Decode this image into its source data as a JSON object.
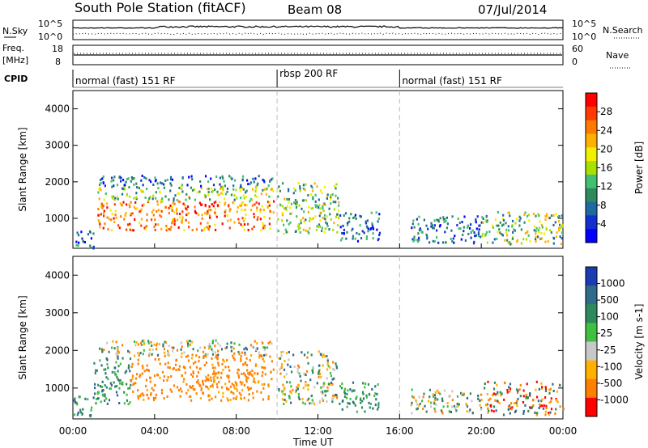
{
  "header": {
    "station": "South Pole Station (fitACF)",
    "beam": "Beam 08",
    "date": "07/Jul/2014"
  },
  "top_panels": {
    "nsky": {
      "label": "N.Sky",
      "ticks": [
        "10^5",
        "10^0"
      ],
      "right_label": "N.Search",
      "right_ticks": [
        "10^5",
        "10^0"
      ]
    },
    "freq": {
      "label_line1": "Freq.",
      "label_line2": "[MHz]",
      "ticks": [
        "18",
        "8"
      ],
      "right_label": "Nave",
      "right_ticks": [
        "60",
        "0"
      ]
    },
    "cpid": {
      "label": "CPID",
      "segments": [
        {
          "name": "normal (fast) 151 RF",
          "start_h": 0,
          "end_h": 10
        },
        {
          "name": "rbsp 200 RF",
          "start_h": 10,
          "end_h": 16
        },
        {
          "name": "normal (fast) 151 RF",
          "start_h": 16,
          "end_h": 24
        }
      ]
    }
  },
  "power_colorbar": {
    "label": "Power [dB]",
    "ticks": [
      "28",
      "24",
      "20",
      "16",
      "12",
      "8",
      "4"
    ],
    "colors": [
      "#ff0000",
      "#ff3b00",
      "#ff7a00",
      "#ffb000",
      "#f0f000",
      "#a8e000",
      "#40c070",
      "#2e8a5c",
      "#1e6aa0",
      "#1030d0",
      "#0000ff"
    ]
  },
  "velocity_colorbar": {
    "label": "Velocity [m s-1]",
    "ticks": [
      "1000",
      "500",
      "100",
      "25",
      "-25",
      "-100",
      "-500",
      "-1000"
    ],
    "colors": [
      "#1a3cb0",
      "#2e6a8a",
      "#2e8a5c",
      "#40c040",
      "#c8c8c8",
      "#ffb000",
      "#ff8000",
      "#ff0000"
    ]
  },
  "chart_data": [
    {
      "type": "heatmap",
      "title": "Power",
      "ylabel": "Slant Range [km]",
      "xlabel": "Time UT",
      "x_ticks": [
        "00:00",
        "04:00",
        "08:00",
        "12:00",
        "16:00",
        "20:00",
        "00:00"
      ],
      "x_hours": [
        0,
        4,
        8,
        12,
        16,
        20,
        24
      ],
      "y_ticks": [
        1000,
        2000,
        3000,
        4000
      ],
      "ylim": [
        180,
        4500
      ],
      "xlim": [
        0,
        24
      ],
      "regions": [
        {
          "x0": 1.2,
          "x1": 9.8,
          "y0": 700,
          "y1": 1500,
          "level": "high"
        },
        {
          "x0": 1.2,
          "x1": 9.8,
          "y0": 1500,
          "y1": 1900,
          "level": "mid"
        },
        {
          "x0": 1.2,
          "x1": 9.8,
          "y0": 1900,
          "y1": 2200,
          "level": "low"
        },
        {
          "x0": 10,
          "x1": 13,
          "y0": 600,
          "y1": 2000,
          "level": "mid"
        },
        {
          "x0": 13,
          "x1": 15,
          "y0": 400,
          "y1": 1200,
          "level": "low"
        },
        {
          "x0": 16.5,
          "x1": 20,
          "y0": 350,
          "y1": 1100,
          "level": "low"
        },
        {
          "x0": 20,
          "x1": 24,
          "y0": 300,
          "y1": 1200,
          "level": "mid"
        },
        {
          "x0": 0,
          "x1": 1,
          "y0": 200,
          "y1": 700,
          "level": "low"
        }
      ]
    },
    {
      "type": "heatmap",
      "title": "Velocity",
      "ylabel": "Slant Range [km]",
      "xlabel": "Time UT",
      "x_ticks": [
        "00:00",
        "04:00",
        "08:00",
        "12:00",
        "16:00",
        "20:00",
        "00:00"
      ],
      "x_hours": [
        0,
        4,
        8,
        12,
        16,
        20,
        24
      ],
      "y_ticks": [
        1000,
        2000,
        3000,
        4000
      ],
      "ylim": [
        180,
        4500
      ],
      "xlim": [
        0,
        24
      ],
      "regions": [
        {
          "x0": 1,
          "x1": 2.8,
          "y0": 600,
          "y1": 1900,
          "level": "pos"
        },
        {
          "x0": 2.8,
          "x1": 9.8,
          "y0": 700,
          "y1": 1900,
          "level": "neg"
        },
        {
          "x0": 1,
          "x1": 9.8,
          "y0": 1900,
          "y1": 2300,
          "level": "mixed"
        },
        {
          "x0": 10,
          "x1": 13,
          "y0": 600,
          "y1": 2000,
          "level": "mixed"
        },
        {
          "x0": 13,
          "x1": 15,
          "y0": 400,
          "y1": 1200,
          "level": "pos"
        },
        {
          "x0": 16.5,
          "x1": 20,
          "y0": 350,
          "y1": 1000,
          "level": "mixed"
        },
        {
          "x0": 20,
          "x1": 24,
          "y0": 300,
          "y1": 1200,
          "level": "negmix"
        },
        {
          "x0": 0,
          "x1": 1,
          "y0": 200,
          "y1": 800,
          "level": "pos"
        }
      ]
    }
  ]
}
